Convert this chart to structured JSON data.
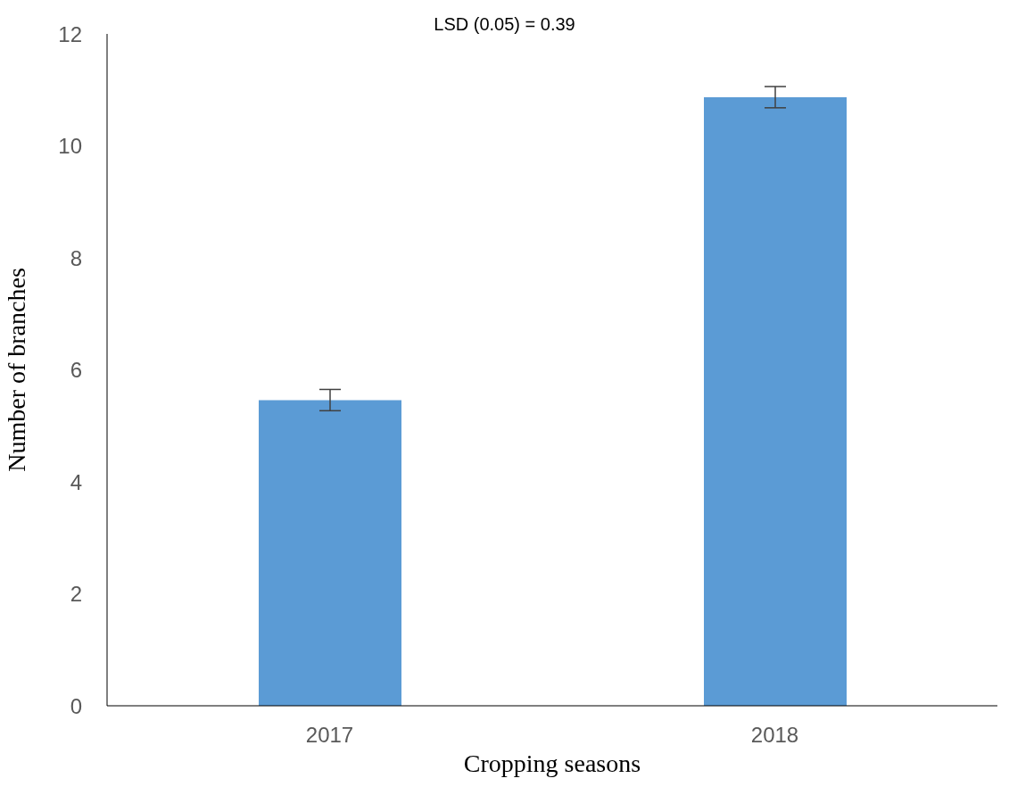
{
  "chart_data": {
    "type": "bar",
    "annotations": [
      "LSD (0.05) = 0.39"
    ],
    "xlabel": "Cropping seasons",
    "ylabel": "Number of branches",
    "categories": [
      "2017",
      "2018"
    ],
    "values": [
      5.46,
      10.87
    ],
    "errors": [
      0.19,
      0.19
    ],
    "color": "#5b9bd5",
    "ylim": [
      0,
      12
    ],
    "yticks": [
      0,
      2,
      4,
      6,
      8,
      10,
      12
    ],
    "grid": false,
    "legend": false
  }
}
